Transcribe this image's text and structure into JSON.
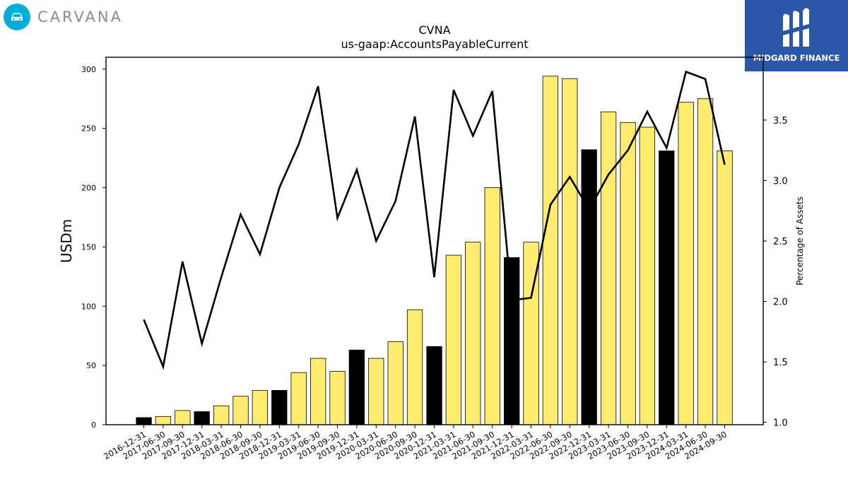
{
  "brand_left": {
    "name": "CARVANA",
    "color": "#00aed9",
    "icon": "car-icon"
  },
  "brand_right": {
    "name": "MIDGARD FINANCE",
    "color": "#2b57a8",
    "icon": "midgard-m-icon"
  },
  "chart_data": {
    "type": "bar",
    "title": "CVNA",
    "subtitle": "us-gaap:AccountsPayableCurrent",
    "ylabel": "USDm",
    "y2label": "Percentage of Assets",
    "ylim": [
      0,
      310
    ],
    "y2lim": [
      0.98,
      4.02
    ],
    "yticks": [
      0,
      50,
      100,
      150,
      200,
      250,
      300
    ],
    "y2ticks": [
      1.0,
      1.5,
      2.0,
      2.5,
      3.0,
      3.5
    ],
    "bar_color_quarter": "#ffeb6e",
    "bar_color_year_end": "#000000",
    "line_color": "#000000",
    "categories": [
      "2016-12-31",
      "2017-06-30",
      "2017-09-30",
      "2017-12-31",
      "2018-03-31",
      "2018-06-30",
      "2018-09-30",
      "2018-12-31",
      "2019-03-31",
      "2019-06-30",
      "2019-09-30",
      "2019-12-31",
      "2020-03-31",
      "2020-06-30",
      "2020-09-30",
      "2020-12-31",
      "2021-03-31",
      "2021-06-30",
      "2021-09-30",
      "2021-12-31",
      "2022-03-31",
      "2022-06-30",
      "2022-09-30",
      "2022-12-31",
      "2023-03-31",
      "2023-06-30",
      "2023-09-30",
      "2023-12-31",
      "2024-03-31",
      "2024-06-30",
      "2024-09-30"
    ],
    "series": [
      {
        "type": "bar",
        "values": [
          6,
          7,
          12,
          11,
          16,
          24,
          29,
          29,
          44,
          56,
          45,
          63,
          56,
          70,
          97,
          66,
          143,
          154,
          200,
          141,
          154,
          294,
          292,
          232,
          264,
          255,
          251,
          231,
          272,
          275,
          231
        ]
      },
      {
        "type": "line",
        "axis": "right",
        "values": [
          1.85,
          1.46,
          2.33,
          1.65,
          2.2,
          2.72,
          2.39,
          2.94,
          3.3,
          3.78,
          2.69,
          3.09,
          2.5,
          2.83,
          3.53,
          2.2,
          3.75,
          3.37,
          3.74,
          2.01,
          2.03,
          2.8,
          3.03,
          2.76,
          3.05,
          3.25,
          3.57,
          3.27,
          3.9,
          3.84,
          3.13
        ]
      }
    ]
  }
}
